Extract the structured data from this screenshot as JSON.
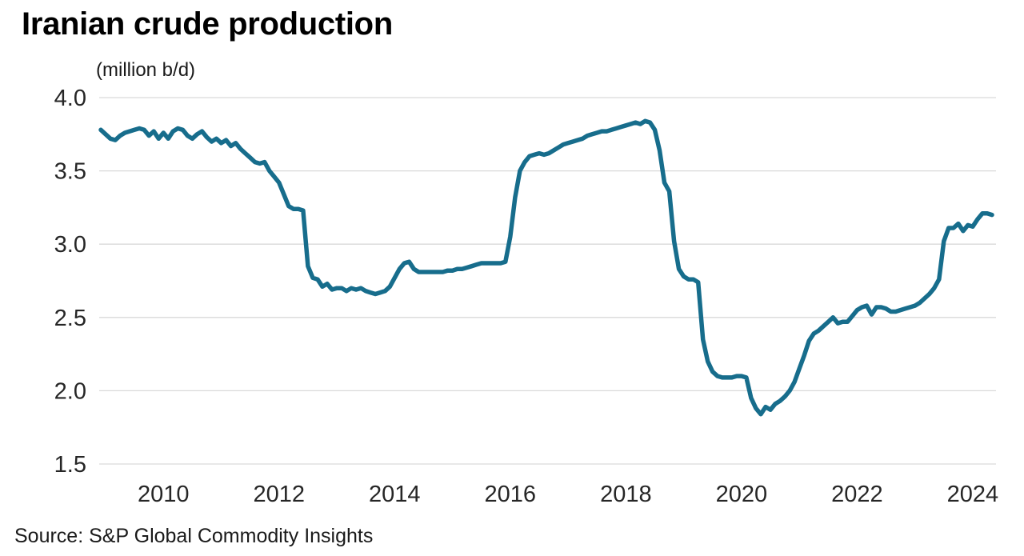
{
  "chart_data": {
    "type": "line",
    "title": "Iranian crude production",
    "subtitle": "(million b/d)",
    "source": "Source: S&P Global Commodity Insights",
    "xlabel": "",
    "ylabel": "million b/d",
    "ylim": [
      1.5,
      4.0
    ],
    "xlim": [
      2008.9167,
      2024.3333
    ],
    "y_ticks": [
      1.5,
      2.0,
      2.5,
      3.0,
      3.5,
      4.0
    ],
    "x_ticks": [
      2010,
      2012,
      2014,
      2016,
      2018,
      2020,
      2022,
      2024
    ],
    "grid": "horizontal",
    "legend": "none",
    "gridline_color": "#d9d9d9",
    "text_color": "#262626",
    "line_width": 5.5,
    "series": [
      {
        "name": "Iranian crude production (million b/d)",
        "color": "#176d8c",
        "start_year": 2008,
        "start_month": 12,
        "interval": "monthly",
        "values": [
          3.78,
          3.75,
          3.72,
          3.71,
          3.74,
          3.76,
          3.77,
          3.78,
          3.79,
          3.78,
          3.74,
          3.77,
          3.72,
          3.76,
          3.72,
          3.77,
          3.79,
          3.78,
          3.74,
          3.72,
          3.75,
          3.77,
          3.73,
          3.7,
          3.72,
          3.69,
          3.71,
          3.67,
          3.69,
          3.65,
          3.62,
          3.59,
          3.56,
          3.55,
          3.56,
          3.5,
          3.46,
          3.42,
          3.34,
          3.26,
          3.24,
          3.24,
          3.23,
          2.85,
          2.77,
          2.76,
          2.71,
          2.73,
          2.69,
          2.7,
          2.7,
          2.68,
          2.7,
          2.69,
          2.7,
          2.68,
          2.67,
          2.66,
          2.67,
          2.68,
          2.71,
          2.77,
          2.83,
          2.87,
          2.88,
          2.83,
          2.81,
          2.81,
          2.81,
          2.81,
          2.81,
          2.81,
          2.82,
          2.82,
          2.83,
          2.83,
          2.84,
          2.85,
          2.86,
          2.87,
          2.87,
          2.87,
          2.87,
          2.87,
          2.88,
          3.05,
          3.32,
          3.5,
          3.56,
          3.6,
          3.61,
          3.62,
          3.61,
          3.62,
          3.64,
          3.66,
          3.68,
          3.69,
          3.7,
          3.71,
          3.72,
          3.74,
          3.75,
          3.76,
          3.77,
          3.77,
          3.78,
          3.79,
          3.8,
          3.81,
          3.82,
          3.83,
          3.82,
          3.84,
          3.83,
          3.78,
          3.64,
          3.42,
          3.36,
          3.02,
          2.83,
          2.78,
          2.76,
          2.76,
          2.74,
          2.35,
          2.2,
          2.13,
          2.1,
          2.09,
          2.09,
          2.09,
          2.1,
          2.1,
          2.09,
          1.95,
          1.88,
          1.84,
          1.89,
          1.87,
          1.91,
          1.93,
          1.96,
          2.0,
          2.06,
          2.15,
          2.24,
          2.34,
          2.39,
          2.41,
          2.44,
          2.47,
          2.5,
          2.46,
          2.47,
          2.47,
          2.51,
          2.55,
          2.57,
          2.58,
          2.52,
          2.57,
          2.57,
          2.56,
          2.54,
          2.54,
          2.55,
          2.56,
          2.57,
          2.58,
          2.6,
          2.63,
          2.66,
          2.7,
          2.76,
          3.02,
          3.11,
          3.11,
          3.14,
          3.09,
          3.13,
          3.12,
          3.17,
          3.21,
          3.21,
          3.2
        ]
      }
    ]
  }
}
